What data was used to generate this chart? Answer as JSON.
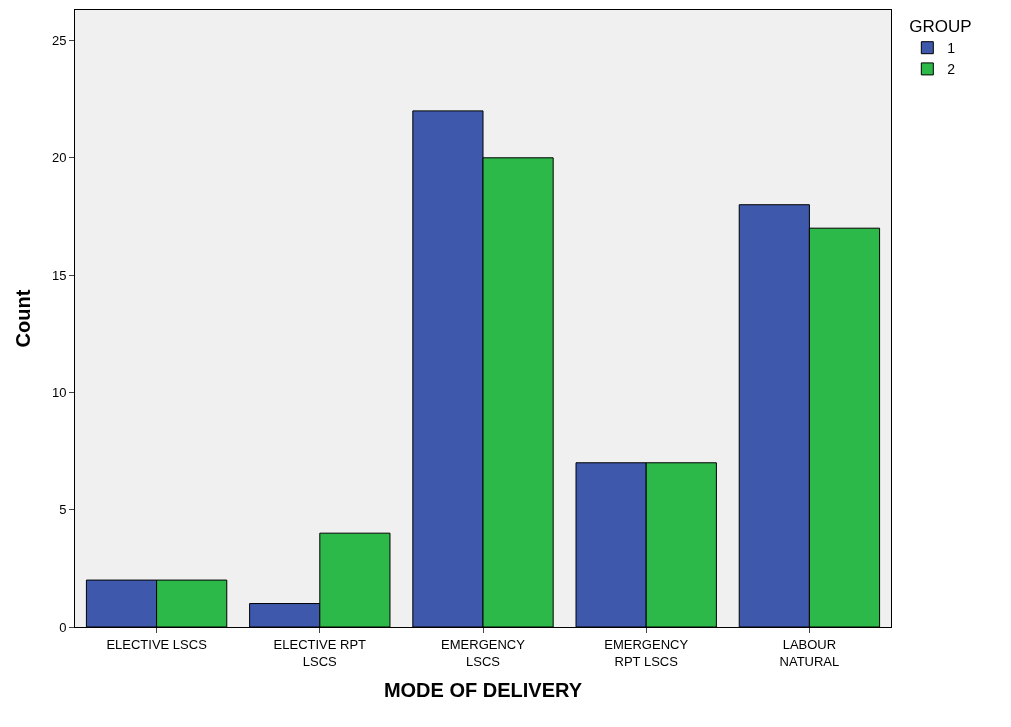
{
  "chart_data": {
    "type": "bar",
    "xlabel": "MODE OF DELIVERY",
    "ylabel": "Count",
    "legend_title": "GROUP",
    "categories": [
      "ELECTIVE LSCS",
      "ELECTIVE RPT LSCS",
      "EMERGENCY LSCS",
      "EMERGENCY RPT LSCS",
      "LABOUR NATURAL"
    ],
    "series": [
      {
        "name": "1",
        "color": "#3e58ac",
        "values": [
          2,
          1,
          22,
          7,
          18
        ]
      },
      {
        "name": "2",
        "color": "#2db84a",
        "values": [
          2,
          4,
          20,
          7,
          17
        ]
      }
    ],
    "ylim": [
      0,
      26.3
    ],
    "yticks": [
      0,
      5,
      10,
      15,
      20,
      25
    ],
    "grid": false,
    "legend": "top right"
  }
}
